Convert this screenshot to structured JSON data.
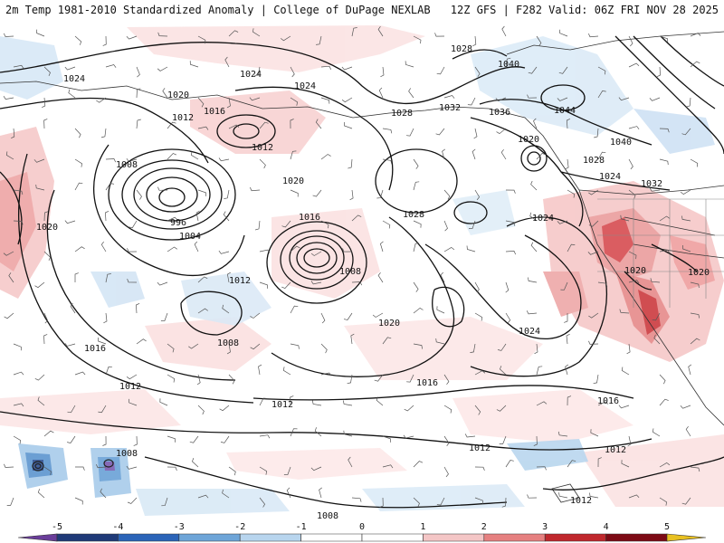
{
  "header": {
    "title_left": "2m Temp 1981-2010 Standardized Anomaly | College of DuPage NEXLAB",
    "title_right": "12Z GFS | F282 Valid: 06Z FRI NOV 28 2025"
  },
  "map": {
    "isobar_labels": [
      {
        "id": "l1024a",
        "text": "1024"
      },
      {
        "id": "l1024b",
        "text": "1024"
      },
      {
        "id": "l1024c",
        "text": "1024"
      },
      {
        "id": "l1028a",
        "text": "1028"
      },
      {
        "id": "l1040a",
        "text": "1040"
      },
      {
        "id": "l1020a",
        "text": "1020"
      },
      {
        "id": "l1012a",
        "text": "1012"
      },
      {
        "id": "l1016a",
        "text": "1016"
      },
      {
        "id": "l1012b",
        "text": "1012"
      },
      {
        "id": "l1028b",
        "text": "1028"
      },
      {
        "id": "l1032a",
        "text": "1032"
      },
      {
        "id": "l1036a",
        "text": "1036"
      },
      {
        "id": "l1044a",
        "text": "1044"
      },
      {
        "id": "l1008a",
        "text": "1008"
      },
      {
        "id": "l1020b",
        "text": "1020"
      },
      {
        "id": "l1040b",
        "text": "1040"
      },
      {
        "id": "l1028c",
        "text": "1028"
      },
      {
        "id": "l1024d",
        "text": "1024"
      },
      {
        "id": "l1032b",
        "text": "1032"
      },
      {
        "id": "l996",
        "text": "996"
      },
      {
        "id": "l1004",
        "text": "1004"
      },
      {
        "id": "l1020c",
        "text": "1020"
      },
      {
        "id": "l1016b",
        "text": "1016"
      },
      {
        "id": "l1028d",
        "text": "1028"
      },
      {
        "id": "l1024e",
        "text": "1024"
      },
      {
        "id": "l1020d",
        "text": "1020"
      },
      {
        "id": "l1008b",
        "text": "1008"
      },
      {
        "id": "l1012c",
        "text": "1012"
      },
      {
        "id": "l1020e",
        "text": "1020"
      },
      {
        "id": "l1020f",
        "text": "1020"
      },
      {
        "id": "l1008c",
        "text": "1008"
      },
      {
        "id": "l1016c",
        "text": "1016"
      },
      {
        "id": "l1024f",
        "text": "1024"
      },
      {
        "id": "l1020g",
        "text": "1020"
      },
      {
        "id": "l1012d",
        "text": "1012"
      },
      {
        "id": "l1012e",
        "text": "1012"
      },
      {
        "id": "l1016d",
        "text": "1016"
      },
      {
        "id": "l1016e",
        "text": "1016"
      },
      {
        "id": "l1012f",
        "text": "1012"
      },
      {
        "id": "l1012g",
        "text": "1012"
      },
      {
        "id": "l1008d",
        "text": "1008"
      },
      {
        "id": "l1012h",
        "text": "1012"
      },
      {
        "id": "l1008e",
        "text": "1008"
      }
    ]
  },
  "legend": {
    "ticks": [
      "-5",
      "-4",
      "-3",
      "-2",
      "-1",
      "0",
      "1",
      "2",
      "3",
      "4",
      "5"
    ],
    "colors": [
      "#6a3d9a",
      "#1f3a78",
      "#2b64b8",
      "#6ea5d8",
      "#b8d5ee",
      "#ffffff",
      "#ffffff",
      "#f4c6c6",
      "#e68080",
      "#c0282d",
      "#7d0a14",
      "#e8c020"
    ]
  }
}
